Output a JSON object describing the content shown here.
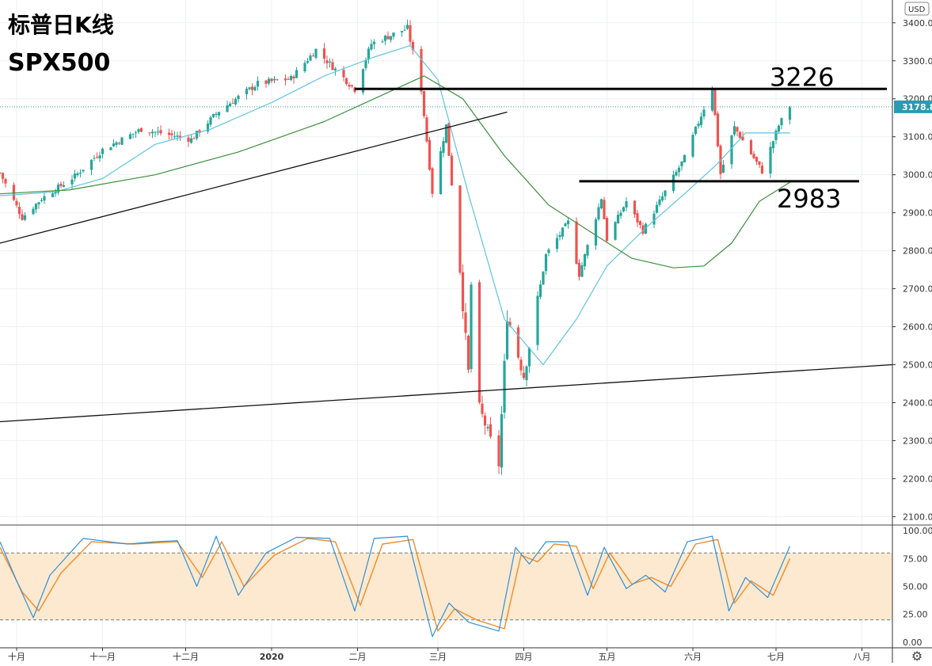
{
  "title": "标普日K线",
  "subtitle": "SPX500",
  "currency_button": "USD",
  "last_price": "3178.8",
  "levels": [
    {
      "value": 3226,
      "label": "3226"
    },
    {
      "value": 2983,
      "label": "2983"
    }
  ],
  "price_axis": {
    "ticks": [
      "3400.0",
      "3300.0",
      "3200.0",
      "3100.0",
      "3000.0",
      "2900.0",
      "2800.0",
      "2700.0",
      "2600.0",
      "2500.0",
      "2400.0",
      "2300.0",
      "2200.0",
      "2100.0"
    ]
  },
  "osc_axis": {
    "ticks": [
      "100.00",
      "75.00",
      "50.00",
      "25.00",
      "0.00"
    ]
  },
  "time_axis": {
    "labels": [
      "十月",
      "十一月",
      "十二月",
      "2020",
      "二月",
      "三月",
      "四月",
      "五月",
      "六月",
      "七月",
      "八月"
    ]
  },
  "colors": {
    "up": "#26a69a",
    "down": "#ef5350",
    "ma_fast": "#5ec4e0",
    "ma_slow": "#3d8f3d",
    "stoch_k": "#2f8fd8",
    "stoch_d": "#f08c2a",
    "band": "#fde9cf",
    "last_price_bg": "#2a9bb0"
  },
  "chart_data": {
    "type": "candlestick",
    "title": "标普日K线",
    "subtitle": "SPX500",
    "x_range": [
      "2019-09-25",
      "2020-08-12"
    ],
    "ylim": [
      2080,
      3460
    ],
    "price_path": [
      [
        "2019-09-25",
        3005
      ],
      [
        "2019-10-03",
        2887
      ],
      [
        "2019-10-10",
        2937
      ],
      [
        "2019-10-22",
        2996
      ],
      [
        "2019-11-01",
        3066
      ],
      [
        "2019-11-15",
        3120
      ],
      [
        "2019-12-03",
        3093
      ],
      [
        "2019-12-13",
        3168
      ],
      [
        "2019-12-27",
        3240
      ],
      [
        "2020-01-08",
        3253
      ],
      [
        "2020-01-17",
        3329
      ],
      [
        "2020-01-31",
        3225
      ],
      [
        "2020-02-06",
        3345
      ],
      [
        "2020-02-19",
        3386
      ],
      [
        "2020-02-24",
        3225
      ],
      [
        "2020-02-28",
        2954
      ],
      [
        "2020-03-04",
        3130
      ],
      [
        "2020-03-09",
        2746
      ],
      [
        "2020-03-12",
        2480
      ],
      [
        "2020-03-13",
        2711
      ],
      [
        "2020-03-16",
        2386
      ],
      [
        "2020-03-23",
        2237
      ],
      [
        "2020-03-26",
        2630
      ],
      [
        "2020-04-01",
        2470
      ],
      [
        "2020-04-09",
        2789
      ],
      [
        "2020-04-17",
        2875
      ],
      [
        "2020-04-21",
        2737
      ],
      [
        "2020-04-29",
        2939
      ],
      [
        "2020-05-01",
        2830
      ],
      [
        "2020-05-08",
        2930
      ],
      [
        "2020-05-14",
        2852
      ],
      [
        "2020-05-22",
        2955
      ],
      [
        "2020-05-29",
        3044
      ],
      [
        "2020-06-08",
        3232
      ],
      [
        "2020-06-11",
        3002
      ],
      [
        "2020-06-16",
        3125
      ],
      [
        "2020-06-26",
        3009
      ],
      [
        "2020-07-02",
        3130
      ],
      [
        "2020-07-06",
        3180
      ]
    ],
    "ma_fast": [
      [
        "2019-09-25",
        2945
      ],
      [
        "2019-10-15",
        2955
      ],
      [
        "2019-11-01",
        2990
      ],
      [
        "2019-11-20",
        3080
      ],
      [
        "2019-12-10",
        3120
      ],
      [
        "2020-01-01",
        3190
      ],
      [
        "2020-01-20",
        3260
      ],
      [
        "2020-02-07",
        3310
      ],
      [
        "2020-02-20",
        3340
      ],
      [
        "2020-03-01",
        3250
      ],
      [
        "2020-03-12",
        2950
      ],
      [
        "2020-03-25",
        2620
      ],
      [
        "2020-04-08",
        2500
      ],
      [
        "2020-04-20",
        2620
      ],
      [
        "2020-05-01",
        2760
      ],
      [
        "2020-05-15",
        2860
      ],
      [
        "2020-05-29",
        2950
      ],
      [
        "2020-06-10",
        3030
      ],
      [
        "2020-06-20",
        3110
      ],
      [
        "2020-07-06",
        3110
      ]
    ],
    "ma_slow": [
      [
        "2019-09-25",
        2950
      ],
      [
        "2019-10-20",
        2960
      ],
      [
        "2019-11-20",
        3000
      ],
      [
        "2019-12-20",
        3060
      ],
      [
        "2020-01-20",
        3140
      ],
      [
        "2020-02-10",
        3210
      ],
      [
        "2020-02-25",
        3260
      ],
      [
        "2020-03-10",
        3200
      ],
      [
        "2020-03-25",
        3050
      ],
      [
        "2020-04-10",
        2920
      ],
      [
        "2020-04-25",
        2850
      ],
      [
        "2020-05-10",
        2780
      ],
      [
        "2020-05-25",
        2755
      ],
      [
        "2020-06-05",
        2760
      ],
      [
        "2020-06-15",
        2820
      ],
      [
        "2020-06-25",
        2930
      ],
      [
        "2020-07-06",
        2980
      ]
    ],
    "trendlines": [
      {
        "from": [
          "2019-09-25",
          2820
        ],
        "to": [
          "2020-03-26",
          3165
        ]
      },
      {
        "from": [
          "2019-09-25",
          2350
        ],
        "to": [
          "2020-08-12",
          2500
        ]
      }
    ],
    "horizontal_levels": [
      {
        "value": 3226,
        "from": "2020-01-31",
        "to": "2020-08-10",
        "label": "3226"
      },
      {
        "value": 2983,
        "from": "2020-04-21",
        "to": "2020-07-31",
        "label": "2983"
      }
    ],
    "oscillator": {
      "type": "stochastic",
      "ylim": [
        -5,
        105
      ],
      "bands": [
        20,
        80
      ],
      "k_series": [
        [
          "2019-09-25",
          90
        ],
        [
          "2019-10-01",
          55
        ],
        [
          "2019-10-07",
          22
        ],
        [
          "2019-10-13",
          60
        ],
        [
          "2019-10-25",
          93
        ],
        [
          "2019-11-10",
          88
        ],
        [
          "2019-11-20",
          90
        ],
        [
          "2019-11-28",
          91
        ],
        [
          "2019-12-05",
          50
        ],
        [
          "2019-12-12",
          95
        ],
        [
          "2019-12-20",
          42
        ],
        [
          "2019-12-30",
          80
        ],
        [
          "2020-01-10",
          94
        ],
        [
          "2020-01-22",
          93
        ],
        [
          "2020-01-31",
          28
        ],
        [
          "2020-02-07",
          93
        ],
        [
          "2020-02-19",
          95
        ],
        [
          "2020-02-28",
          5
        ],
        [
          "2020-03-05",
          35
        ],
        [
          "2020-03-12",
          18
        ],
        [
          "2020-03-23",
          10
        ],
        [
          "2020-03-29",
          85
        ],
        [
          "2020-04-03",
          70
        ],
        [
          "2020-04-09",
          90
        ],
        [
          "2020-04-17",
          90
        ],
        [
          "2020-04-24",
          42
        ],
        [
          "2020-04-30",
          85
        ],
        [
          "2020-05-08",
          48
        ],
        [
          "2020-05-15",
          60
        ],
        [
          "2020-05-22",
          45
        ],
        [
          "2020-05-30",
          90
        ],
        [
          "2020-06-08",
          95
        ],
        [
          "2020-06-14",
          28
        ],
        [
          "2020-06-20",
          58
        ],
        [
          "2020-06-28",
          40
        ],
        [
          "2020-07-06",
          86
        ]
      ],
      "d_series": [
        [
          "2019-09-25",
          85
        ],
        [
          "2019-10-03",
          45
        ],
        [
          "2019-10-09",
          28
        ],
        [
          "2019-10-17",
          62
        ],
        [
          "2019-10-28",
          90
        ],
        [
          "2019-11-12",
          88
        ],
        [
          "2019-11-28",
          90
        ],
        [
          "2019-12-07",
          58
        ],
        [
          "2019-12-14",
          90
        ],
        [
          "2019-12-22",
          50
        ],
        [
          "2020-01-02",
          78
        ],
        [
          "2020-01-14",
          93
        ],
        [
          "2020-01-24",
          90
        ],
        [
          "2020-02-02",
          33
        ],
        [
          "2020-02-10",
          88
        ],
        [
          "2020-02-21",
          92
        ],
        [
          "2020-03-01",
          10
        ],
        [
          "2020-03-07",
          30
        ],
        [
          "2020-03-15",
          20
        ],
        [
          "2020-03-25",
          12
        ],
        [
          "2020-03-31",
          78
        ],
        [
          "2020-04-06",
          72
        ],
        [
          "2020-04-12",
          88
        ],
        [
          "2020-04-20",
          86
        ],
        [
          "2020-04-26",
          48
        ],
        [
          "2020-05-02",
          80
        ],
        [
          "2020-05-10",
          52
        ],
        [
          "2020-05-17",
          58
        ],
        [
          "2020-05-24",
          50
        ],
        [
          "2020-06-02",
          88
        ],
        [
          "2020-06-10",
          92
        ],
        [
          "2020-06-16",
          35
        ],
        [
          "2020-06-22",
          55
        ],
        [
          "2020-06-30",
          42
        ],
        [
          "2020-07-06",
          75
        ]
      ]
    }
  }
}
